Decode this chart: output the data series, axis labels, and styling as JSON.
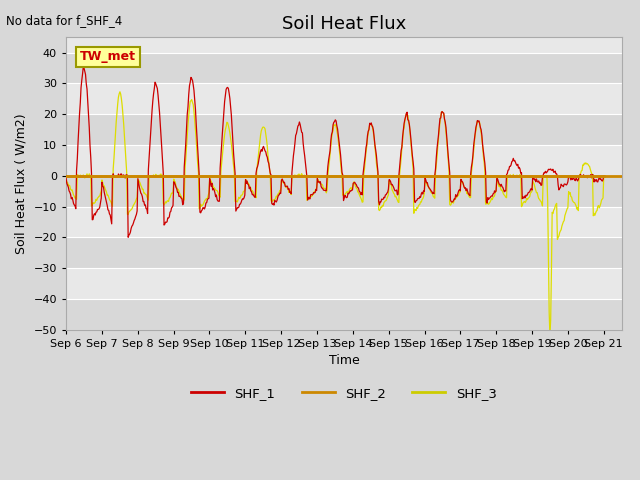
{
  "title": "Soil Heat Flux",
  "top_left_text": "No data for f_SHF_4",
  "xlabel": "Time",
  "ylabel": "Soil Heat Flux ( W/m2)",
  "ylim": [
    -50,
    45
  ],
  "yticks": [
    -50,
    -40,
    -30,
    -20,
    -10,
    0,
    10,
    20,
    30,
    40
  ],
  "x_tick_labels": [
    "Sep 6",
    "Sep 7",
    "Sep 8",
    "Sep 9",
    "Sep 10",
    "Sep 11",
    "Sep 12",
    "Sep 13",
    "Sep 14",
    "Sep 15",
    "Sep 16",
    "Sep 17",
    "Sep 18",
    "Sep 19",
    "Sep 20",
    "Sep 21"
  ],
  "legend_labels": [
    "SHF_1",
    "SHF_2",
    "SHF_3"
  ],
  "legend_colors": [
    "#cc0000",
    "#cc8800",
    "#cccc00"
  ],
  "annotation_box_text": "TW_met",
  "annotation_box_color": "#ffff99",
  "annotation_box_edge": "#999900",
  "title_fontsize": 13,
  "label_fontsize": 9,
  "tick_fontsize": 8,
  "axes_facecolor": "#e8e8e8",
  "grid_color": "#ffffff",
  "zero_line_color": "#cc8800",
  "shf1_color": "#cc0000",
  "shf2_color": "#cc8800",
  "shf3_color": "#dddd00",
  "band_colors": [
    "#d8d8d8",
    "#e8e8e8"
  ]
}
